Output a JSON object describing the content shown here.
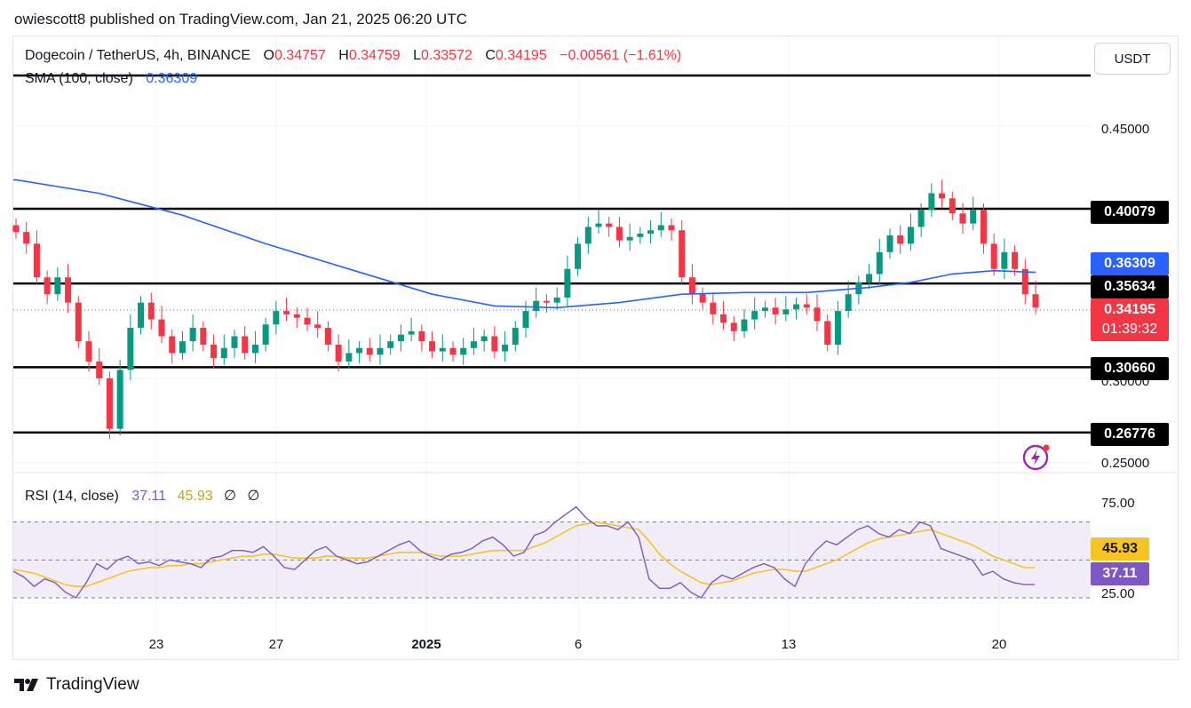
{
  "header": {
    "publisher_line": "owiescott8 published on TradingView.com, Jan 21, 2025 06:20 UTC"
  },
  "legend": {
    "symbol": "Dogecoin / TetherUS, 4h, BINANCE",
    "open_label": "O",
    "open": "0.34757",
    "high_label": "H",
    "high": "0.34759",
    "low_label": "L",
    "low": "0.33572",
    "close_label": "C",
    "close": "0.34195",
    "change": "−0.00561 (−1.61%)",
    "sma_label": "SMA (100, close)",
    "sma_value": "0.36309",
    "rsi_label": "RSI (14, close)",
    "rsi_value": "37.11",
    "rsi_ma_value": "45.93",
    "rsi_extra1": "∅",
    "rsi_extra2": "∅"
  },
  "currency": "USDT",
  "price_axis": {
    "ticks": [
      "0.45000",
      "0.30000",
      "0.25000"
    ]
  },
  "levels": [
    {
      "value": 0.40079,
      "label": "0.40079"
    },
    {
      "value": 0.35634,
      "label": "0.35634"
    },
    {
      "value": 0.3066,
      "label": "0.30660"
    },
    {
      "value": 0.26776,
      "label": "0.26776"
    },
    {
      "value": 0.48,
      "label": ""
    }
  ],
  "badges": {
    "sma": "0.36309",
    "last_price": "0.34195",
    "countdown": "01:39:32",
    "rsi_ma": "45.93",
    "rsi": "37.11"
  },
  "rsi_axis": {
    "ticks": [
      "75.00",
      "25.00"
    ]
  },
  "time_axis": [
    "23",
    "27",
    "2025",
    "6",
    "13",
    "20"
  ],
  "footer": {
    "brand": "TradingView"
  },
  "colors": {
    "up": "#089981",
    "down": "#f23645",
    "sma": "#2962ff",
    "rsi": "#7e57c2",
    "rsi_ma": "#f7c325",
    "level": "#000000"
  },
  "chart_data": [
    {
      "type": "candlestick",
      "title": "Dogecoin / TetherUS, 4h, BINANCE",
      "ylim": [
        0.245,
        0.48
      ],
      "x_ticks": [
        "23",
        "27",
        "2025",
        "6",
        "13",
        "20"
      ],
      "horizontal_levels": [
        0.40079,
        0.35634,
        0.3066,
        0.26776
      ],
      "close_path": [
        [
          0,
          0.387
        ],
        [
          1,
          0.38
        ],
        [
          2,
          0.36
        ],
        [
          3,
          0.35
        ],
        [
          4,
          0.36
        ],
        [
          5,
          0.345
        ],
        [
          6,
          0.322
        ],
        [
          7,
          0.31
        ],
        [
          8,
          0.3
        ],
        [
          9,
          0.27
        ],
        [
          10,
          0.305
        ],
        [
          11,
          0.33
        ],
        [
          12,
          0.345
        ],
        [
          13,
          0.335
        ],
        [
          14,
          0.325
        ],
        [
          15,
          0.315
        ],
        [
          16,
          0.322
        ],
        [
          17,
          0.33
        ],
        [
          18,
          0.32
        ],
        [
          19,
          0.312
        ],
        [
          20,
          0.318
        ],
        [
          21,
          0.325
        ],
        [
          22,
          0.315
        ],
        [
          23,
          0.32
        ],
        [
          24,
          0.332
        ],
        [
          25,
          0.34
        ],
        [
          26,
          0.338
        ],
        [
          27,
          0.336
        ],
        [
          28,
          0.332
        ],
        [
          29,
          0.33
        ],
        [
          30,
          0.32
        ],
        [
          31,
          0.31
        ],
        [
          32,
          0.315
        ],
        [
          33,
          0.318
        ],
        [
          34,
          0.314
        ],
        [
          35,
          0.318
        ],
        [
          36,
          0.322
        ],
        [
          37,
          0.326
        ],
        [
          38,
          0.328
        ],
        [
          39,
          0.322
        ],
        [
          40,
          0.316
        ],
        [
          41,
          0.318
        ],
        [
          42,
          0.314
        ],
        [
          43,
          0.318
        ],
        [
          44,
          0.322
        ],
        [
          45,
          0.325
        ],
        [
          46,
          0.316
        ],
        [
          47,
          0.32
        ],
        [
          48,
          0.33
        ],
        [
          49,
          0.34
        ],
        [
          50,
          0.346
        ],
        [
          51,
          0.345
        ],
        [
          52,
          0.348
        ],
        [
          53,
          0.365
        ],
        [
          54,
          0.38
        ],
        [
          55,
          0.39
        ],
        [
          56,
          0.392
        ],
        [
          57,
          0.39
        ],
        [
          58,
          0.382
        ],
        [
          59,
          0.384
        ],
        [
          60,
          0.386
        ],
        [
          61,
          0.388
        ],
        [
          62,
          0.391
        ],
        [
          63,
          0.388
        ],
        [
          64,
          0.36
        ],
        [
          65,
          0.35
        ],
        [
          66,
          0.345
        ],
        [
          67,
          0.338
        ],
        [
          68,
          0.333
        ],
        [
          69,
          0.328
        ],
        [
          70,
          0.335
        ],
        [
          71,
          0.34
        ],
        [
          72,
          0.342
        ],
        [
          73,
          0.338
        ],
        [
          74,
          0.341
        ],
        [
          75,
          0.344
        ],
        [
          76,
          0.342
        ],
        [
          77,
          0.334
        ],
        [
          78,
          0.32
        ],
        [
          79,
          0.34
        ],
        [
          80,
          0.35
        ],
        [
          81,
          0.357
        ],
        [
          82,
          0.362
        ],
        [
          83,
          0.375
        ],
        [
          84,
          0.385
        ],
        [
          85,
          0.38
        ],
        [
          86,
          0.39
        ],
        [
          87,
          0.4
        ],
        [
          88,
          0.41
        ],
        [
          89,
          0.407
        ],
        [
          90,
          0.398
        ],
        [
          91,
          0.392
        ],
        [
          92,
          0.4
        ],
        [
          93,
          0.38
        ],
        [
          94,
          0.365
        ],
        [
          95,
          0.375
        ],
        [
          96,
          0.365
        ],
        [
          97,
          0.35
        ],
        [
          98,
          0.342
        ]
      ],
      "sma_path": [
        [
          0,
          0.418
        ],
        [
          8,
          0.41
        ],
        [
          16,
          0.397
        ],
        [
          24,
          0.38
        ],
        [
          32,
          0.365
        ],
        [
          40,
          0.35
        ],
        [
          46,
          0.343
        ],
        [
          52,
          0.342
        ],
        [
          58,
          0.345
        ],
        [
          64,
          0.35
        ],
        [
          70,
          0.351
        ],
        [
          76,
          0.351
        ],
        [
          82,
          0.354
        ],
        [
          86,
          0.357
        ],
        [
          90,
          0.362
        ],
        [
          94,
          0.364
        ],
        [
          98,
          0.363
        ]
      ]
    },
    {
      "type": "line",
      "title": "RSI (14, close)",
      "ylim": [
        15,
        90
      ],
      "bands": [
        70,
        50,
        30
      ],
      "series": [
        {
          "name": "RSI",
          "values": [
            44,
            41,
            36,
            40,
            38,
            33,
            30,
            38,
            48,
            45,
            50,
            52,
            48,
            49,
            47,
            50,
            49,
            48,
            46,
            51,
            52,
            55,
            55,
            54,
            57,
            52,
            46,
            45,
            50,
            55,
            57,
            52,
            50,
            48,
            49,
            52,
            55,
            58,
            60,
            55,
            52,
            50,
            53,
            54,
            56,
            60,
            62,
            58,
            52,
            54,
            63,
            65,
            70,
            74,
            78,
            72,
            68,
            68,
            66,
            70,
            62,
            40,
            35,
            35,
            38,
            33,
            30,
            38,
            42,
            40,
            43,
            46,
            48,
            46,
            40,
            36,
            48,
            55,
            60,
            58,
            62,
            66,
            68,
            64,
            62,
            66,
            64,
            70,
            68,
            56,
            54,
            52,
            50,
            42,
            44,
            40,
            38,
            37,
            37.1
          ]
        },
        {
          "name": "MA",
          "values": [
            45,
            44,
            43,
            41,
            39,
            37,
            36,
            36,
            38,
            40,
            42,
            44,
            45,
            46,
            46,
            47,
            47,
            48,
            48,
            49,
            50,
            51,
            52,
            52,
            53,
            53,
            52,
            51,
            51,
            51,
            52,
            52,
            51,
            51,
            51,
            52,
            53,
            54,
            54,
            54,
            53,
            52,
            52,
            52,
            53,
            54,
            55,
            55,
            55,
            55,
            57,
            59,
            62,
            65,
            68,
            69,
            70,
            69,
            68,
            67,
            66,
            60,
            53,
            48,
            44,
            41,
            38,
            37,
            38,
            39,
            41,
            43,
            44,
            45,
            45,
            44,
            44,
            46,
            48,
            50,
            53,
            56,
            59,
            61,
            62,
            63,
            64,
            65,
            66,
            64,
            62,
            60,
            58,
            55,
            52,
            50,
            48,
            46,
            45.93
          ]
        }
      ]
    }
  ]
}
